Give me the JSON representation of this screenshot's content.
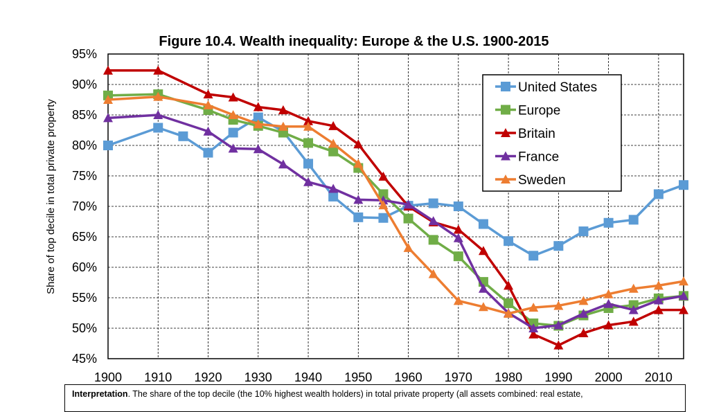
{
  "chart_data": {
    "type": "line",
    "title": "Figure 10.4. Wealth inequality: Europe & the U.S. 1900-2015",
    "xlabel": "",
    "ylabel": "Share of top decile in total private property",
    "xlim": [
      1900,
      2015
    ],
    "ylim": [
      45,
      95
    ],
    "x_ticks": [
      "1900",
      "1910",
      "1920",
      "1930",
      "1940",
      "1950",
      "1960",
      "1970",
      "1980",
      "1990",
      "2000",
      "2010"
    ],
    "y_ticks": [
      "45%",
      "50%",
      "55%",
      "60%",
      "65%",
      "70%",
      "75%",
      "80%",
      "85%",
      "90%",
      "95%"
    ],
    "grid": true,
    "legend_position": "top-right",
    "series": [
      {
        "name": "United States",
        "color": "#5B9BD5",
        "marker": "square",
        "x": [
          1900,
          1910,
          1915,
          1920,
          1925,
          1930,
          1935,
          1940,
          1945,
          1950,
          1955,
          1960,
          1965,
          1970,
          1975,
          1980,
          1985,
          1990,
          1995,
          2000,
          2005,
          2010,
          2015
        ],
        "values": [
          80.0,
          82.9,
          81.5,
          78.8,
          82.1,
          84.6,
          82.3,
          77.0,
          71.6,
          68.2,
          68.1,
          70.1,
          70.5,
          70.0,
          67.1,
          64.3,
          61.9,
          63.5,
          65.9,
          67.3,
          67.8,
          72.0,
          73.5
        ]
      },
      {
        "name": "Europe",
        "color": "#70AD47",
        "marker": "square",
        "x": [
          1900,
          1910,
          1920,
          1925,
          1930,
          1935,
          1940,
          1945,
          1950,
          1955,
          1960,
          1965,
          1970,
          1975,
          1980,
          1985,
          1990,
          1995,
          2000,
          2005,
          2010,
          2015
        ],
        "values": [
          88.2,
          88.4,
          85.8,
          84.2,
          83.2,
          82.1,
          80.4,
          79.0,
          76.3,
          72.0,
          68.0,
          64.5,
          61.8,
          57.6,
          54.1,
          50.8,
          50.4,
          52.1,
          53.3,
          53.8,
          54.9,
          55.3
        ]
      },
      {
        "name": "Britain",
        "color": "#C00000",
        "marker": "triangle",
        "x": [
          1900,
          1910,
          1920,
          1925,
          1930,
          1935,
          1940,
          1945,
          1950,
          1955,
          1960,
          1965,
          1970,
          1975,
          1980,
          1985,
          1990,
          1995,
          2000,
          2005,
          2010,
          2015
        ],
        "values": [
          92.3,
          92.3,
          88.4,
          87.9,
          86.3,
          85.8,
          84.0,
          83.2,
          80.2,
          74.9,
          70.0,
          67.4,
          66.2,
          62.7,
          57.0,
          49.0,
          47.2,
          49.2,
          50.5,
          51.1,
          53.0,
          53.0
        ]
      },
      {
        "name": "France",
        "color": "#7030A0",
        "marker": "triangle",
        "x": [
          1900,
          1910,
          1920,
          1925,
          1930,
          1935,
          1940,
          1945,
          1950,
          1955,
          1960,
          1965,
          1970,
          1975,
          1980,
          1985,
          1990,
          1995,
          2000,
          2005,
          2010,
          2015
        ],
        "values": [
          84.5,
          85.0,
          82.3,
          79.5,
          79.4,
          76.9,
          74.0,
          72.9,
          71.1,
          71.0,
          70.3,
          67.6,
          64.8,
          56.5,
          52.5,
          50.0,
          50.5,
          52.4,
          54.0,
          53.0,
          54.6,
          55.3
        ]
      },
      {
        "name": "Sweden",
        "color": "#ED7D31",
        "marker": "triangle",
        "x": [
          1900,
          1910,
          1920,
          1925,
          1930,
          1935,
          1940,
          1945,
          1950,
          1955,
          1960,
          1965,
          1970,
          1975,
          1980,
          1985,
          1990,
          1995,
          2000,
          2005,
          2010,
          2015
        ],
        "values": [
          87.5,
          88.0,
          86.6,
          85.0,
          83.5,
          83.1,
          83.1,
          80.3,
          77.0,
          70.2,
          63.2,
          58.9,
          54.5,
          53.5,
          52.4,
          53.4,
          53.7,
          54.5,
          55.6,
          56.5,
          57.0,
          57.7
        ]
      }
    ]
  },
  "interpretation": {
    "label": "Interpretation",
    "text": ". The share of the top decile (the 10% highest wealth holders) in total private property (all assets combined: real estate,"
  }
}
